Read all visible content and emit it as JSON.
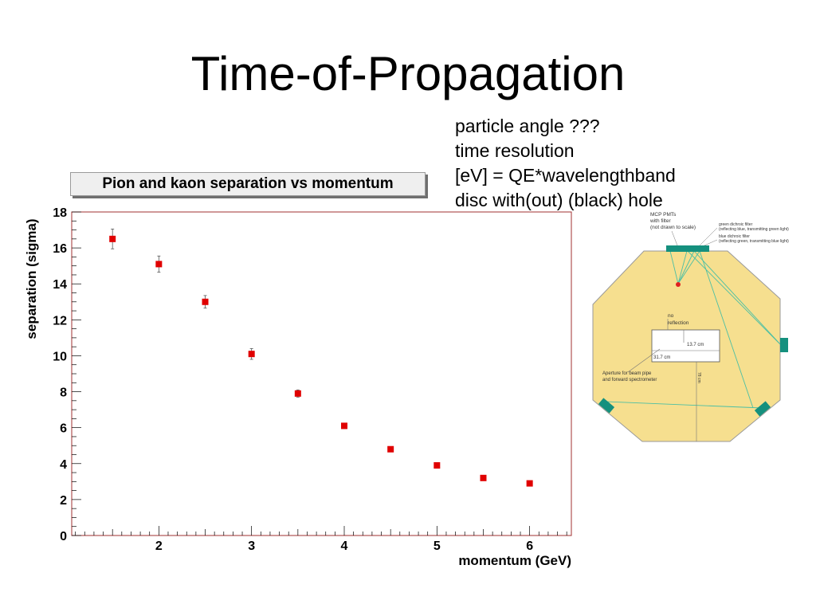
{
  "slide": {
    "title": "Time-of-Propagation",
    "notes": [
      "particle angle ???",
      "time resolution",
      "[eV] = QE*wavelengthband",
      "disc with(out) (black) hole"
    ]
  },
  "chart_data": {
    "type": "scatter",
    "title": "Pion and kaon separation vs momentum",
    "xlabel": "momentum (GeV)",
    "ylabel": "separation (sigma)",
    "xlim": [
      1.06,
      6.45
    ],
    "ylim": [
      0,
      18
    ],
    "xticks": [
      2,
      3,
      4,
      5,
      6
    ],
    "yticks": [
      0,
      2,
      4,
      6,
      8,
      10,
      12,
      14,
      16,
      18
    ],
    "grid": false,
    "series": [
      {
        "color": "#e00000",
        "x": [
          1.5,
          2.0,
          2.5,
          3.0,
          3.5,
          4.0,
          4.5,
          5.0,
          5.5,
          6.0
        ],
        "y": [
          16.5,
          15.1,
          13.0,
          10.1,
          7.9,
          6.1,
          4.8,
          3.9,
          3.2,
          2.9
        ],
        "yerr": [
          0.55,
          0.45,
          0.35,
          0.3,
          0.2,
          0.15,
          0.1,
          0.1,
          0.1,
          0.1
        ]
      }
    ],
    "frame_color": "#a03030"
  },
  "diagram": {
    "labels": {
      "mcp": [
        "MCP PMTs",
        "with filter",
        "(not drawn to scale)"
      ],
      "green_filter": [
        "green dichroic filter",
        "(reflecting blue, transmitting green light)"
      ],
      "blue_filter": [
        "blue dichroic filter",
        "(reflecting green, transmitting blue light)"
      ],
      "no_reflection": [
        "no",
        "reflection"
      ],
      "dim1": "13.7 cm",
      "dim2": "31.7 cm",
      "dim3": "78 cm",
      "aperture": [
        "Aperture for beam pipe",
        "and forward spectrometer"
      ]
    },
    "colors": {
      "disc": "#f6df8f",
      "disc_stroke": "#999999",
      "sensor": "#15907e",
      "ray": "#4cbfa4",
      "dot": "#e02020"
    }
  }
}
